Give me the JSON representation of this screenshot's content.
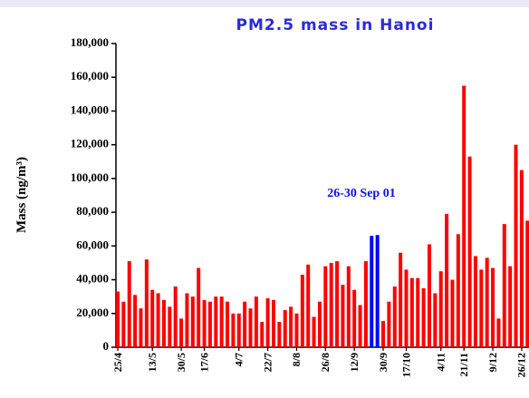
{
  "chart_data": {
    "type": "bar",
    "title": "PM2.5 mass in Hanoi",
    "y_label": "Mass (ng/m³)",
    "annotation": "26-30 Sep 01",
    "categories": [
      "25/4",
      null,
      null,
      null,
      null,
      null,
      "13/5",
      null,
      null,
      null,
      null,
      "30/5",
      null,
      null,
      null,
      "17/6",
      null,
      null,
      null,
      null,
      null,
      "4/7",
      null,
      null,
      null,
      null,
      "22/7",
      null,
      null,
      null,
      null,
      "8/8",
      null,
      null,
      null,
      null,
      "26/8",
      null,
      null,
      null,
      null,
      "12/9",
      null,
      null,
      null,
      null,
      "30/9",
      null,
      null,
      null,
      "17/10",
      null,
      null,
      null,
      null,
      null,
      "4/11",
      null,
      null,
      null,
      "21/11",
      null,
      null,
      null,
      null,
      "9/12",
      null,
      null,
      null,
      null,
      "26/12",
      null
    ],
    "values": [
      33000,
      27000,
      51000,
      31000,
      23000,
      52000,
      34000,
      32000,
      28000,
      24000,
      36000,
      17000,
      32000,
      30000,
      47000,
      28000,
      27000,
      30000,
      30000,
      27000,
      20000,
      20000,
      27000,
      23000,
      30000,
      15000,
      29000,
      28000,
      15000,
      22000,
      24000,
      20000,
      43000,
      49000,
      18000,
      27000,
      48000,
      50000,
      51000,
      37000,
      48000,
      34000,
      25000,
      51000,
      66000,
      66500,
      15500,
      27000,
      36000,
      56000,
      46000,
      41000,
      41000,
      35000,
      61000,
      32000,
      45000,
      79000,
      40000,
      67000,
      155000,
      113000,
      54000,
      46000,
      53000,
      47000,
      17000,
      73000,
      48000,
      120000,
      105000,
      75000
    ],
    "colors": [
      "#ff0000",
      "#ff0000",
      "#ff0000",
      "#ff0000",
      "#ff0000",
      "#ff0000",
      "#ff0000",
      "#ff0000",
      "#ff0000",
      "#ff0000",
      "#ff0000",
      "#ff0000",
      "#ff0000",
      "#ff0000",
      "#ff0000",
      "#ff0000",
      "#ff0000",
      "#ff0000",
      "#ff0000",
      "#ff0000",
      "#ff0000",
      "#ff0000",
      "#ff0000",
      "#ff0000",
      "#ff0000",
      "#ff0000",
      "#ff0000",
      "#ff0000",
      "#ff0000",
      "#ff0000",
      "#ff0000",
      "#ff0000",
      "#ff0000",
      "#ff0000",
      "#ff0000",
      "#ff0000",
      "#ff0000",
      "#ff0000",
      "#ff0000",
      "#ff0000",
      "#ff0000",
      "#ff0000",
      "#ff0000",
      "#ff0000",
      "#0000ff",
      "#0000ff",
      "#ff0000",
      "#ff0000",
      "#ff0000",
      "#ff0000",
      "#ff0000",
      "#ff0000",
      "#ff0000",
      "#ff0000",
      "#ff0000",
      "#ff0000",
      "#ff0000",
      "#ff0000",
      "#ff0000",
      "#ff0000",
      "#ff0000",
      "#ff0000",
      "#ff0000",
      "#ff0000",
      "#ff0000",
      "#ff0000",
      "#ff0000",
      "#ff0000",
      "#ff0000",
      "#ff0000",
      "#ff0000",
      "#ff0000"
    ],
    "ylim": [
      0,
      180000
    ],
    "yticks": [
      0,
      {
        "value": 20000,
        "label": "20,000"
      },
      {
        "value": 40000,
        "label": "40,000"
      },
      {
        "value": 60000,
        "label": "60,000"
      },
      {
        "value": 80000,
        "label": "80,000"
      },
      {
        "value": 100000,
        "label": "100,000"
      },
      {
        "value": 120000,
        "label": "120,000"
      },
      {
        "value": 140000,
        "label": "140,000"
      },
      {
        "value": 160000,
        "label": "160,000"
      },
      {
        "value": 180000,
        "label": "180,000"
      }
    ],
    "grid": false
  }
}
